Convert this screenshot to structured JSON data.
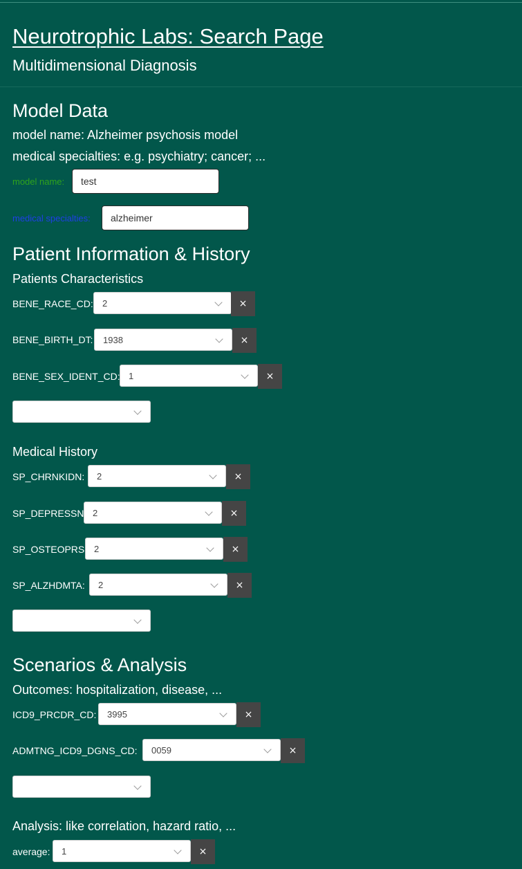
{
  "header": {
    "title": "Neurotrophic Labs: Search Page",
    "subtitle": "Multidimensional Diagnosis"
  },
  "model_data": {
    "heading": "Model Data",
    "model_name_line": "model name: Alzheimer psychosis model",
    "specialties_line": "medical specialties: e.g. psychiatry; cancer; ...",
    "model_name_label": "model name:",
    "model_name_value": "test",
    "specialties_label": "medical specialties:",
    "specialties_value": "alzheimer"
  },
  "patient": {
    "heading": "Patient Information & History",
    "characteristics_heading": "Patients Characteristics",
    "characteristics": [
      {
        "label": "BENE_RACE_CD:",
        "value": "2"
      },
      {
        "label": "BENE_BIRTH_DT:",
        "value": "1938"
      },
      {
        "label": "BENE_SEX_IDENT_CD:",
        "value": "1"
      }
    ],
    "history_heading": "Medical History",
    "history": [
      {
        "label": "SP_CHRNKIDN:",
        "value": "2"
      },
      {
        "label": "SP_DEPRESSN:",
        "value": "2"
      },
      {
        "label": "SP_OSTEOPRS:",
        "value": "2"
      },
      {
        "label": "SP_ALZHDMTA:",
        "value": "2"
      }
    ]
  },
  "scenarios": {
    "heading": "Scenarios & Analysis",
    "outcomes_line": "Outcomes: hospitalization, disease, ...",
    "outcomes": [
      {
        "label": "ICD9_PRCDR_CD:",
        "value": "3995"
      },
      {
        "label": "ADMTNG_ICD9_DGNS_CD:",
        "value": "0059"
      }
    ],
    "analysis_line": "Analysis: like correlation, hazard ratio, ...",
    "analysis": [
      {
        "label": "average:",
        "value": "1"
      }
    ]
  },
  "remove_symbol": "×",
  "icons": {
    "dropdown": "chevron-down-icon",
    "remove": "close-icon"
  },
  "colors": {
    "background": "#02574b",
    "remove_button": "#454545",
    "model_name_label": "#2fa31c",
    "specialties_label": "#1f3fe6"
  }
}
